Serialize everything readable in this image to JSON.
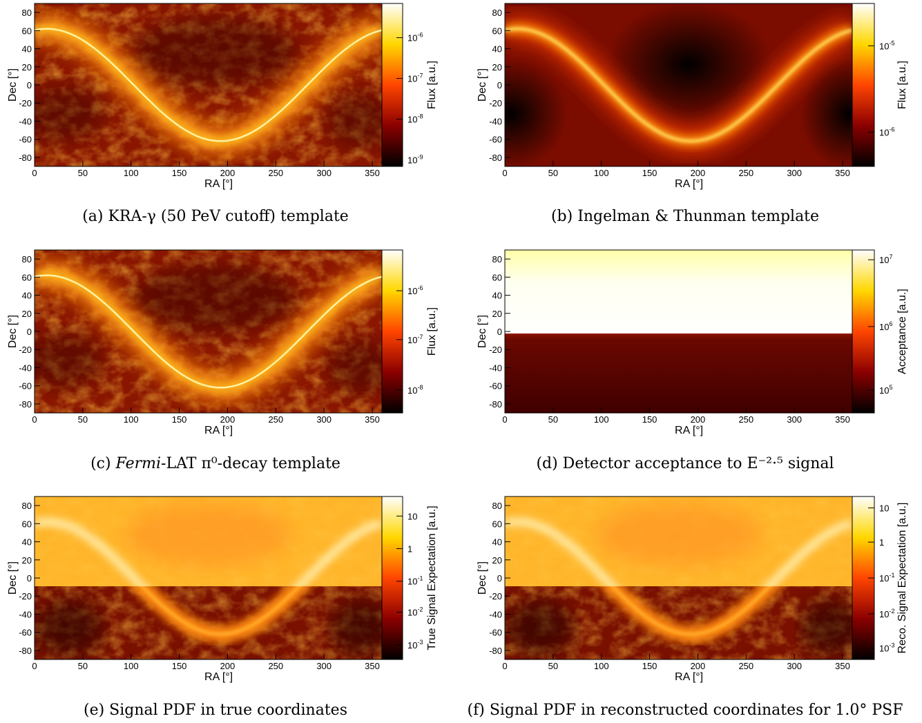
{
  "panels": [
    {
      "id": "a",
      "caption": "(a) KRA-γ (50 PeV cutoff) template",
      "map_style": "kra",
      "chart_data": {
        "type": "heatmap",
        "xlabel": "RA [°]",
        "ylabel": "Dec [°]",
        "zlabel": "Flux [a.u.]",
        "xlim": [
          0,
          360
        ],
        "ylim": [
          -90,
          90
        ],
        "xticks": [
          0,
          50,
          100,
          150,
          200,
          250,
          300,
          350
        ],
        "yticks": [
          80,
          60,
          40,
          20,
          0,
          -20,
          -40,
          -60,
          -80
        ],
        "z_scale": "log",
        "zticks": [
          {
            "base": "10",
            "exp": "-6",
            "pos": 0.21
          },
          {
            "base": "10",
            "exp": "-7",
            "pos": 0.46
          },
          {
            "base": "10",
            "exp": "-8",
            "pos": 0.71
          },
          {
            "base": "10",
            "exp": "-9",
            "pos": 0.96
          }
        ],
        "colormap": [
          "#000000",
          "#8b0000",
          "#ff4500",
          "#ffd700",
          "#ffffff"
        ]
      }
    },
    {
      "id": "b",
      "caption": "(b) Ingelman & Thunman template",
      "map_style": "ingelman",
      "chart_data": {
        "type": "heatmap",
        "xlabel": "RA [°]",
        "ylabel": "Dec [°]",
        "zlabel": "Flux [a.u.]",
        "xlim": [
          0,
          360
        ],
        "ylim": [
          -90,
          90
        ],
        "xticks": [
          0,
          50,
          100,
          150,
          200,
          250,
          300,
          350
        ],
        "yticks": [
          80,
          60,
          40,
          20,
          0,
          -20,
          -40,
          -60,
          -80
        ],
        "z_scale": "log",
        "zticks": [
          {
            "base": "10",
            "exp": "-5",
            "pos": 0.26
          },
          {
            "base": "10",
            "exp": "-6",
            "pos": 0.79
          }
        ],
        "colormap": [
          "#000000",
          "#8b0000",
          "#ff4500",
          "#ffd700",
          "#ffffff"
        ]
      }
    },
    {
      "id": "c",
      "caption": "(c) Fermi-LAT π⁰-decay template",
      "caption_italic": "Fermi",
      "map_style": "kra",
      "chart_data": {
        "type": "heatmap",
        "xlabel": "RA [°]",
        "ylabel": "Dec [°]",
        "zlabel": "Flux [a.u.]",
        "xlim": [
          0,
          360
        ],
        "ylim": [
          -90,
          90
        ],
        "xticks": [
          0,
          50,
          100,
          150,
          200,
          250,
          300,
          350
        ],
        "yticks": [
          80,
          60,
          40,
          20,
          0,
          -20,
          -40,
          -60,
          -80
        ],
        "z_scale": "log",
        "zticks": [
          {
            "base": "10",
            "exp": "-6",
            "pos": 0.25
          },
          {
            "base": "10",
            "exp": "-7",
            "pos": 0.55
          },
          {
            "base": "10",
            "exp": "-8",
            "pos": 0.86
          }
        ],
        "colormap": [
          "#000000",
          "#8b0000",
          "#ff4500",
          "#ffd700",
          "#ffffff"
        ]
      }
    },
    {
      "id": "d",
      "caption": "(d) Detector acceptance to E⁻²·⁵ signal",
      "map_style": "acceptance",
      "chart_data": {
        "type": "heatmap",
        "xlabel": "RA [°]",
        "ylabel": "Dec [°]",
        "zlabel": "Acceptance [a.u.]",
        "xlim": [
          0,
          360
        ],
        "ylim": [
          -90,
          90
        ],
        "xticks": [
          0,
          50,
          100,
          150,
          200,
          250,
          300,
          350
        ],
        "yticks": [
          80,
          60,
          40,
          20,
          0,
          -20,
          -40,
          -60,
          -80
        ],
        "z_scale": "log",
        "zticks": [
          {
            "base": "10",
            "exp": "7",
            "pos": 0.06
          },
          {
            "base": "10",
            "exp": "6",
            "pos": 0.47
          },
          {
            "base": "10",
            "exp": "5",
            "pos": 0.86
          }
        ],
        "colormap": [
          "#000000",
          "#8b0000",
          "#ff4500",
          "#ffd700",
          "#ffffff"
        ]
      }
    },
    {
      "id": "e",
      "caption": "(e) Signal PDF in true coordinates",
      "map_style": "signal",
      "chart_data": {
        "type": "heatmap",
        "xlabel": "RA [°]",
        "ylabel": "Dec [°]",
        "zlabel": "True Signal Expectation [a.u.]",
        "xlim": [
          0,
          360
        ],
        "ylim": [
          -90,
          90
        ],
        "xticks": [
          0,
          50,
          100,
          150,
          200,
          250,
          300,
          350
        ],
        "yticks": [
          80,
          60,
          40,
          20,
          0,
          -20,
          -40,
          -60,
          -80
        ],
        "z_scale": "log",
        "zticks": [
          {
            "base": "10",
            "exp": "",
            "pos": 0.12
          },
          {
            "base": "1",
            "exp": "",
            "pos": 0.32
          },
          {
            "base": "10",
            "exp": "-1",
            "pos": 0.52
          },
          {
            "base": "10",
            "exp": "-2",
            "pos": 0.71
          },
          {
            "base": "10",
            "exp": "-3",
            "pos": 0.91
          }
        ],
        "colormap": [
          "#000000",
          "#8b0000",
          "#ff4500",
          "#ffd700",
          "#ffffff"
        ]
      }
    },
    {
      "id": "f",
      "caption": "(f) Signal PDF in reconstructed coordinates for 1.0° PSF",
      "map_style": "signal",
      "chart_data": {
        "type": "heatmap",
        "xlabel": "RA [°]",
        "ylabel": "Dec [°]",
        "zlabel": "Reco. Signal Expectation [a.u.]",
        "xlim": [
          0,
          360
        ],
        "ylim": [
          -90,
          90
        ],
        "xticks": [
          0,
          50,
          100,
          150,
          200,
          250,
          300,
          350
        ],
        "yticks": [
          80,
          60,
          40,
          20,
          0,
          -20,
          -40,
          -60,
          -80
        ],
        "z_scale": "log",
        "zticks": [
          {
            "base": "10",
            "exp": "",
            "pos": 0.07
          },
          {
            "base": "1",
            "exp": "",
            "pos": 0.28
          },
          {
            "base": "10",
            "exp": "-1",
            "pos": 0.5
          },
          {
            "base": "10",
            "exp": "-2",
            "pos": 0.72
          },
          {
            "base": "10",
            "exp": "-3",
            "pos": 0.93
          }
        ],
        "colormap": [
          "#000000",
          "#8b0000",
          "#ff4500",
          "#ffd700",
          "#ffffff"
        ]
      }
    }
  ]
}
